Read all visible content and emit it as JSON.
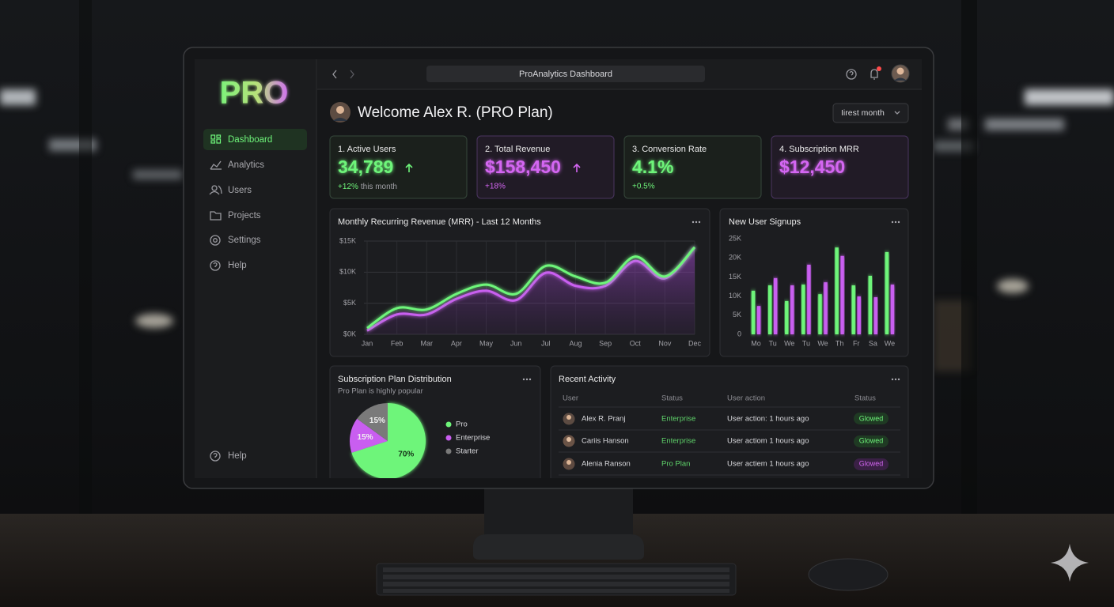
{
  "browser": {
    "title": "ProAnalytics Dashboard"
  },
  "sidebar": {
    "logo": "PRO",
    "nav": [
      "Dashboard",
      "Analytics",
      "Users",
      "Projects",
      "Settings",
      "Help"
    ],
    "footer": "Help"
  },
  "header": {
    "welcome": "Welcome Alex R. (PRO Plan)",
    "filter": "Iirest month"
  },
  "kpis": [
    {
      "label": "1. Active Users",
      "value": "34,789",
      "change": "+12%",
      "note": "this month"
    },
    {
      "label": "2. Total Revenue",
      "value": "$158,450",
      "change": "+18%"
    },
    {
      "label": "3. Conversion Rate",
      "value": "4.1%",
      "change": "+0.5%"
    },
    {
      "label": "4. Subscription MRR",
      "value": "$12,450"
    }
  ],
  "chart_data": [
    {
      "type": "line",
      "title": "Monthly Recurring Revenue (MRR) - Last 12 Months",
      "categories": [
        "Jan",
        "Feb",
        "Mar",
        "Apr",
        "May",
        "Jun",
        "Jul",
        "Aug",
        "Sep",
        "Oct",
        "Nov",
        "Dec"
      ],
      "series": [
        {
          "color": "#6ef57a",
          "values": [
            1000,
            4200,
            4000,
            6500,
            8000,
            6500,
            11000,
            9300,
            8300,
            12500,
            9300,
            14000
          ]
        },
        {
          "color": "#c95ef0",
          "area": true,
          "values": [
            600,
            3200,
            3200,
            5700,
            7000,
            5500,
            9900,
            7800,
            7800,
            11800,
            9000,
            14000
          ]
        }
      ],
      "ylim": [
        0,
        15000
      ],
      "yticks": [
        {
          "value": 0,
          "label": "$0K"
        },
        {
          "value": 5000,
          "label": "$5K"
        },
        {
          "value": 10000,
          "label": "$10K"
        },
        {
          "value": 15000,
          "label": "$15K"
        }
      ],
      "grid": true
    },
    {
      "type": "bar",
      "title": "New User Signups",
      "categories": [
        "Mo",
        "Tu",
        "We",
        "Tu",
        "We",
        "Th",
        "Fr",
        "Sa",
        "We"
      ],
      "series": [
        {
          "color": "#6ef57a",
          "values": [
            11400,
            12800,
            8700,
            13000,
            10500,
            22700,
            12800,
            15300,
            21500
          ]
        },
        {
          "color": "#c95ef0",
          "values": [
            7400,
            14700,
            12800,
            18200,
            13600,
            20500,
            9900,
            9700,
            13000
          ]
        }
      ],
      "ylim": [
        0,
        25000
      ],
      "yticks": [
        0,
        {
          "value": 5000,
          "label": "5K"
        },
        {
          "value": 10000,
          "label": "10K"
        },
        {
          "value": 15000,
          "label": "15K"
        },
        {
          "value": 20000,
          "label": "20K"
        },
        {
          "value": 25000,
          "label": "25K"
        }
      ],
      "grid": false
    },
    {
      "type": "pie",
      "title": "Subscription Plan Distribution",
      "subtitle": "Pro Plan is highly popular",
      "categories": [
        "Pro",
        "Enterprise",
        "Starter"
      ],
      "values": [
        70,
        15,
        15
      ],
      "value_labels": [
        "70%",
        "15%",
        "15%"
      ],
      "colors": [
        "#6ef57a",
        "#c95ef0",
        "#7a7a7a"
      ]
    }
  ],
  "activity": {
    "title": "Recent Activity",
    "columns": [
      "User",
      "Status",
      "User action",
      "Status"
    ],
    "rows": [
      [
        "Alex R. Pranj",
        "Enterprise",
        "User action: 1 hours ago",
        "Glowed"
      ],
      [
        "Cariis Hanson",
        "Enterprise",
        "User actiom 1 hours ago",
        "Glowed"
      ],
      [
        "Alenia Ranson",
        "Pro Plan",
        "User actiem 1 hours ago",
        "Glowed"
      ]
    ]
  }
}
